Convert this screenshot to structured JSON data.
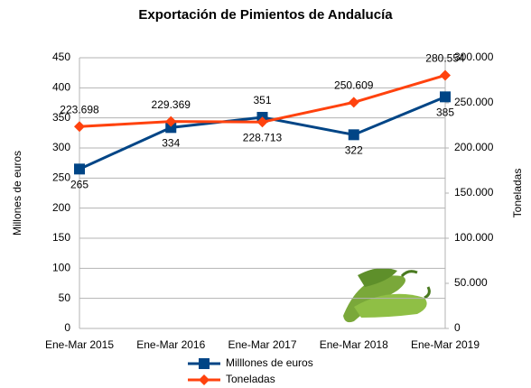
{
  "chart_data": {
    "type": "line",
    "title": "Exportación de Pimientos de Andalucía",
    "ylabel": "Millones de euros",
    "y2label": "Toneladas",
    "categories": [
      "Ene-Mar 2015",
      "Ene-Mar 2016",
      "Ene-Mar 2017",
      "Ene-Mar 2018",
      "Ene-Mar 2019"
    ],
    "series": [
      {
        "name": "Milllones de euros",
        "color": "#004586",
        "marker": "square",
        "values": [
          265,
          334,
          351,
          322,
          385
        ]
      },
      {
        "name": "Toneladas",
        "color": "#ff420e",
        "marker": "diamond",
        "axis": "y2",
        "values": [
          223698,
          229369,
          228713,
          250609,
          280554
        ],
        "value_labels": [
          "223.698",
          "229.369",
          "228.713",
          "250.609",
          "280.554"
        ]
      }
    ],
    "ylim": [
      0,
      450
    ],
    "yticks": [
      0,
      50,
      100,
      150,
      200,
      250,
      300,
      350,
      400,
      450
    ],
    "y2lim": [
      0,
      300000
    ],
    "y2ticks": [
      0,
      {
        "value": 50000,
        "label": "50.000"
      },
      {
        "value": 100000,
        "label": "100.000"
      },
      {
        "value": 150000,
        "label": "150.000"
      },
      {
        "value": 200000,
        "label": "200.000"
      },
      {
        "value": 250000,
        "label": "250.000"
      },
      {
        "value": 300000,
        "label": "300.000"
      }
    ],
    "grid": true
  }
}
